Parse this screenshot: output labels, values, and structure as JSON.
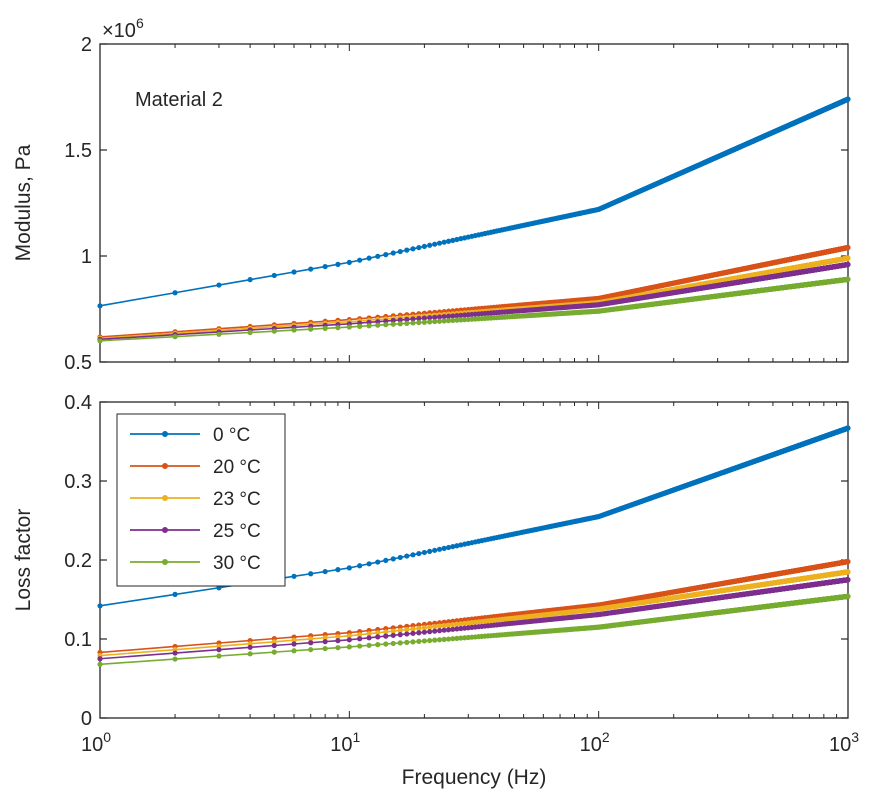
{
  "chart_data": [
    {
      "type": "line",
      "panel": "top",
      "annotation": "Material 2",
      "ylabel": "Modulus, Pa",
      "xlabel": "",
      "xscale": "log",
      "xlim": [
        1,
        1000
      ],
      "ylim": [
        0.5,
        2.0
      ],
      "y_multiplier": "×10^6",
      "y_exponent_base": "×10",
      "y_exponent_power": "6",
      "yticks": [
        "0.5",
        "1",
        "1.5",
        "2"
      ],
      "xtick_labels_shown": false,
      "grid": false,
      "series": [
        {
          "name": "0 °C",
          "color": "#0072BD",
          "x": [
            1,
            10,
            100,
            1000
          ],
          "y": [
            0.765,
            0.97,
            1.22,
            1.74
          ]
        },
        {
          "name": "20 °C",
          "color": "#D95319",
          "x": [
            1,
            10,
            100,
            1000
          ],
          "y": [
            0.618,
            0.7,
            0.8,
            1.04
          ]
        },
        {
          "name": "23 °C",
          "color": "#EDB120",
          "x": [
            1,
            10,
            100,
            1000
          ],
          "y": [
            0.612,
            0.69,
            0.78,
            0.99
          ]
        },
        {
          "name": "25 °C",
          "color": "#7E2F8E",
          "x": [
            1,
            10,
            100,
            1000
          ],
          "y": [
            0.607,
            0.68,
            0.77,
            0.96
          ]
        },
        {
          "name": "30 °C",
          "color": "#77AC30",
          "x": [
            1,
            10,
            100,
            1000
          ],
          "y": [
            0.6,
            0.665,
            0.74,
            0.89
          ]
        }
      ]
    },
    {
      "type": "line",
      "panel": "bottom",
      "ylabel": "Loss factor",
      "xlabel": "Frequency (Hz)",
      "xscale": "log",
      "xlim": [
        1,
        1000
      ],
      "ylim": [
        0,
        0.4
      ],
      "yticks": [
        "0",
        "0.1",
        "0.2",
        "0.3",
        "0.4"
      ],
      "xtick_base": "10",
      "xtick_powers": [
        "0",
        "1",
        "2",
        "3"
      ],
      "grid": false,
      "legend_position": "top-left",
      "series": [
        {
          "name": "0 °C",
          "color": "#0072BD",
          "x": [
            1,
            10,
            100,
            1000
          ],
          "y": [
            0.142,
            0.19,
            0.255,
            0.367
          ]
        },
        {
          "name": "20 °C",
          "color": "#D95319",
          "x": [
            1,
            10,
            100,
            1000
          ],
          "y": [
            0.083,
            0.108,
            0.143,
            0.198
          ]
        },
        {
          "name": "23 °C",
          "color": "#EDB120",
          "x": [
            1,
            10,
            100,
            1000
          ],
          "y": [
            0.079,
            0.104,
            0.138,
            0.185
          ]
        },
        {
          "name": "25 °C",
          "color": "#7E2F8E",
          "x": [
            1,
            10,
            100,
            1000
          ],
          "y": [
            0.075,
            0.099,
            0.131,
            0.175
          ]
        },
        {
          "name": "30 °C",
          "color": "#77AC30",
          "x": [
            1,
            10,
            100,
            1000
          ],
          "y": [
            0.068,
            0.09,
            0.115,
            0.154
          ]
        }
      ]
    }
  ]
}
